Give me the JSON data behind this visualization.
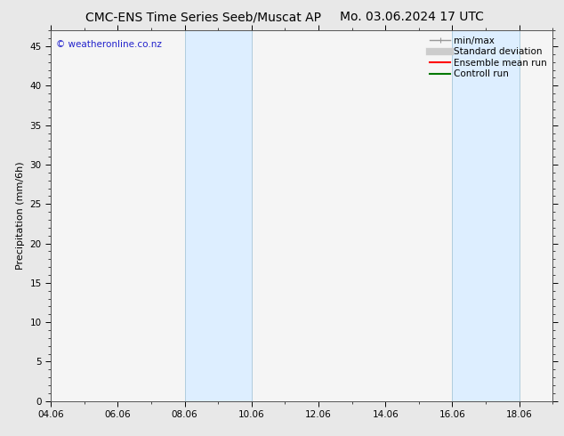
{
  "title_left": "CMC-ENS Time Series Seeb/Muscat AP",
  "title_right": "Mo. 03.06.2024 17 UTC",
  "ylabel": "Precipitation (mm/6h)",
  "ylim": [
    0,
    47
  ],
  "yticks": [
    0,
    5,
    10,
    15,
    20,
    25,
    30,
    35,
    40,
    45
  ],
  "xtick_labels": [
    "04.06",
    "06.06",
    "08.06",
    "10.06",
    "12.06",
    "14.06",
    "16.06",
    "18.06"
  ],
  "xtick_days": [
    0,
    2,
    4,
    6,
    8,
    10,
    12,
    14
  ],
  "xlim_days": [
    0,
    15
  ],
  "shaded_bands": [
    {
      "x_start_day": 4,
      "x_end_day": 6
    },
    {
      "x_start_day": 12,
      "x_end_day": 14
    }
  ],
  "band_color": "#ddeeff",
  "band_edge_color": "#b0ccdd",
  "watermark_text": "© weatheronline.co.nz",
  "watermark_color": "#2222cc",
  "legend_entries": [
    {
      "label": "min/max",
      "color": "#999999",
      "lw": 1.0
    },
    {
      "label": "Standard deviation",
      "color": "#cccccc",
      "lw": 6
    },
    {
      "label": "Ensemble mean run",
      "color": "#ff0000",
      "lw": 1.5
    },
    {
      "label": "Controll run",
      "color": "#007700",
      "lw": 1.5
    }
  ],
  "bg_color": "#e8e8e8",
  "plot_bg_color": "#f5f5f5",
  "title_fontsize": 10,
  "axis_label_fontsize": 8,
  "tick_fontsize": 7.5,
  "watermark_fontsize": 7.5,
  "legend_fontsize": 7.5
}
